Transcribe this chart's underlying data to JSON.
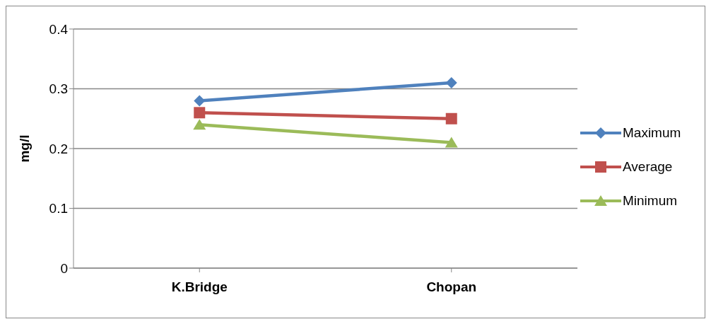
{
  "chart_data": {
    "type": "line",
    "ylabel": "mg/l",
    "categories": [
      "K.Bridge",
      "Chopan"
    ],
    "series": [
      {
        "name": "Maximum",
        "color": "#4f81bd",
        "marker": "diamond",
        "values": [
          0.28,
          0.31
        ]
      },
      {
        "name": "Average",
        "color": "#c0504d",
        "marker": "square",
        "values": [
          0.26,
          0.25
        ]
      },
      {
        "name": "Minimum",
        "color": "#9bbb59",
        "marker": "triangle",
        "values": [
          0.24,
          0.21
        ]
      }
    ],
    "ylim": [
      0,
      0.4
    ],
    "yticks": [
      0,
      0.1,
      0.2,
      0.3,
      0.4
    ],
    "grid": "y",
    "legend": "right"
  }
}
